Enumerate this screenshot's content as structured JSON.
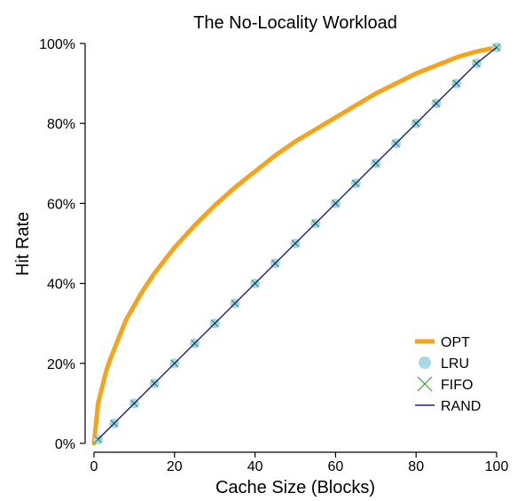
{
  "chart_data": {
    "type": "line",
    "title": "The No-Locality Workload",
    "xlabel": "Cache Size (Blocks)",
    "ylabel": "Hit Rate",
    "xlim": [
      0,
      100
    ],
    "ylim": [
      0,
      100
    ],
    "xticks": [
      0,
      20,
      40,
      60,
      80,
      100
    ],
    "yticks": [
      0,
      20,
      40,
      60,
      80,
      100
    ],
    "xtick_labels": [
      "0",
      "20",
      "40",
      "60",
      "80",
      "100"
    ],
    "ytick_labels": [
      "0%",
      "20%",
      "40%",
      "60%",
      "80%",
      "100%"
    ],
    "legend_position": "bottom-right",
    "grid": false,
    "series": [
      {
        "name": "OPT",
        "color": "#f5a31a",
        "marker": "line-thick",
        "x": [
          1,
          2,
          3,
          4,
          5,
          6,
          8,
          10,
          12,
          15,
          20,
          25,
          30,
          35,
          40,
          45,
          50,
          55,
          60,
          65,
          70,
          75,
          80,
          85,
          90,
          95,
          100
        ],
        "y": [
          10,
          14,
          18,
          21,
          23.5,
          26,
          31,
          34.5,
          38,
          42.5,
          49,
          54.5,
          59.5,
          64,
          68,
          72,
          75.5,
          78.5,
          81.5,
          84.5,
          87.5,
          90,
          92.5,
          94.5,
          96.5,
          98,
          99
        ]
      },
      {
        "name": "LRU",
        "color": "#a8d8e8",
        "marker": "circle",
        "x": [
          1,
          5,
          10,
          15,
          20,
          25,
          30,
          35,
          40,
          45,
          50,
          55,
          60,
          65,
          70,
          75,
          80,
          85,
          90,
          95,
          100
        ],
        "y": [
          1,
          5,
          10,
          15,
          20,
          25,
          30,
          35,
          40,
          45,
          50,
          55,
          60,
          65,
          70,
          75,
          80,
          85,
          90,
          95,
          99
        ]
      },
      {
        "name": "FIFO",
        "color": "#3a9a3a",
        "marker": "x",
        "x": [
          1,
          5,
          10,
          15,
          20,
          25,
          30,
          35,
          40,
          45,
          50,
          55,
          60,
          65,
          70,
          75,
          80,
          85,
          90,
          95,
          100
        ],
        "y": [
          1,
          5,
          10,
          15,
          20,
          25,
          30,
          35,
          40,
          45,
          50,
          55,
          60,
          65,
          70,
          75,
          80,
          85,
          90,
          95,
          99
        ]
      },
      {
        "name": "RAND",
        "color": "#1a237e",
        "marker": "line-thin",
        "x": [
          1,
          5,
          10,
          15,
          20,
          25,
          30,
          35,
          40,
          45,
          50,
          55,
          60,
          65,
          70,
          75,
          80,
          85,
          90,
          95,
          100
        ],
        "y": [
          1,
          5,
          10,
          15,
          20,
          25,
          30,
          35,
          40,
          45,
          50,
          55,
          60,
          65,
          70,
          75,
          80,
          85,
          90,
          95,
          99
        ]
      }
    ]
  }
}
